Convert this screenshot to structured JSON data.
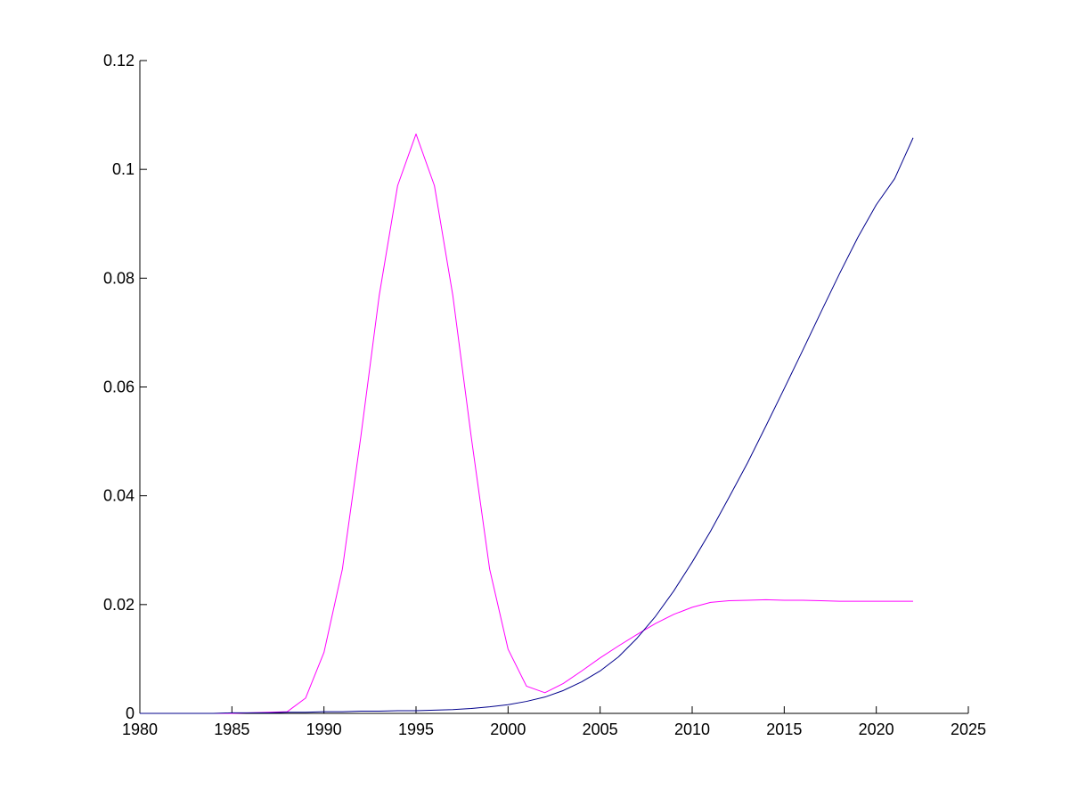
{
  "chart_data": {
    "type": "line",
    "title": "",
    "xlabel": "",
    "ylabel": "",
    "xlim": [
      1980,
      2025
    ],
    "ylim": [
      0,
      0.12
    ],
    "x_ticks": [
      "1980",
      "1985",
      "1990",
      "1995",
      "2000",
      "2005",
      "2010",
      "2015",
      "2020",
      "2025"
    ],
    "y_ticks": [
      "0",
      "0.02",
      "0.04",
      "0.06",
      "0.08",
      "0.1",
      "0.12"
    ],
    "grid": false,
    "legend": "none",
    "series": [
      {
        "color": "#ff00ff",
        "x": [
          1980,
          1981,
          1982,
          1983,
          1984,
          1985,
          1986,
          1987,
          1988,
          1989,
          1990,
          1991,
          1992,
          1993,
          1994,
          1995,
          1996,
          1997,
          1998,
          1999,
          2000,
          2001,
          2002,
          2003,
          2004,
          2005,
          2006,
          2007,
          2008,
          2009,
          2010,
          2011,
          2012,
          2013,
          2014,
          2015,
          2016,
          2017,
          2018,
          2019,
          2020,
          2021,
          2022
        ],
        "y": [
          0,
          0,
          0,
          0,
          0,
          0,
          0.0001,
          0.0002,
          0.0003,
          0.0028,
          0.0112,
          0.0265,
          0.0508,
          0.0768,
          0.097,
          0.1065,
          0.097,
          0.0768,
          0.0508,
          0.0265,
          0.0118,
          0.005,
          0.0038,
          0.0055,
          0.0078,
          0.0102,
          0.0124,
          0.0145,
          0.0165,
          0.0182,
          0.0195,
          0.0204,
          0.0207,
          0.0208,
          0.0209,
          0.0208,
          0.0208,
          0.0207,
          0.0206,
          0.0206,
          0.0206,
          0.0206,
          0.0206
        ]
      },
      {
        "color": "#00008b",
        "x": [
          1980,
          1981,
          1982,
          1983,
          1984,
          1985,
          1986,
          1987,
          1988,
          1989,
          1990,
          1991,
          1992,
          1993,
          1994,
          1995,
          1996,
          1997,
          1998,
          1999,
          2000,
          2001,
          2002,
          2003,
          2004,
          2005,
          2006,
          2007,
          2008,
          2009,
          2010,
          2011,
          2012,
          2013,
          2014,
          2015,
          2016,
          2017,
          2018,
          2019,
          2020,
          2021,
          2022
        ],
        "y": [
          0,
          0,
          0,
          0,
          0,
          0.0001,
          0.0001,
          0.0001,
          0.0002,
          0.0002,
          0.0003,
          0.0003,
          0.0004,
          0.0004,
          0.0005,
          0.0005,
          0.0006,
          0.0007,
          0.0009,
          0.0012,
          0.0016,
          0.0022,
          0.003,
          0.0042,
          0.0058,
          0.0078,
          0.0104,
          0.0138,
          0.0178,
          0.0225,
          0.0278,
          0.0335,
          0.0397,
          0.046,
          0.0528,
          0.0597,
          0.0667,
          0.0738,
          0.0808,
          0.0875,
          0.0935,
          0.0983,
          0.1058
        ]
      }
    ]
  }
}
